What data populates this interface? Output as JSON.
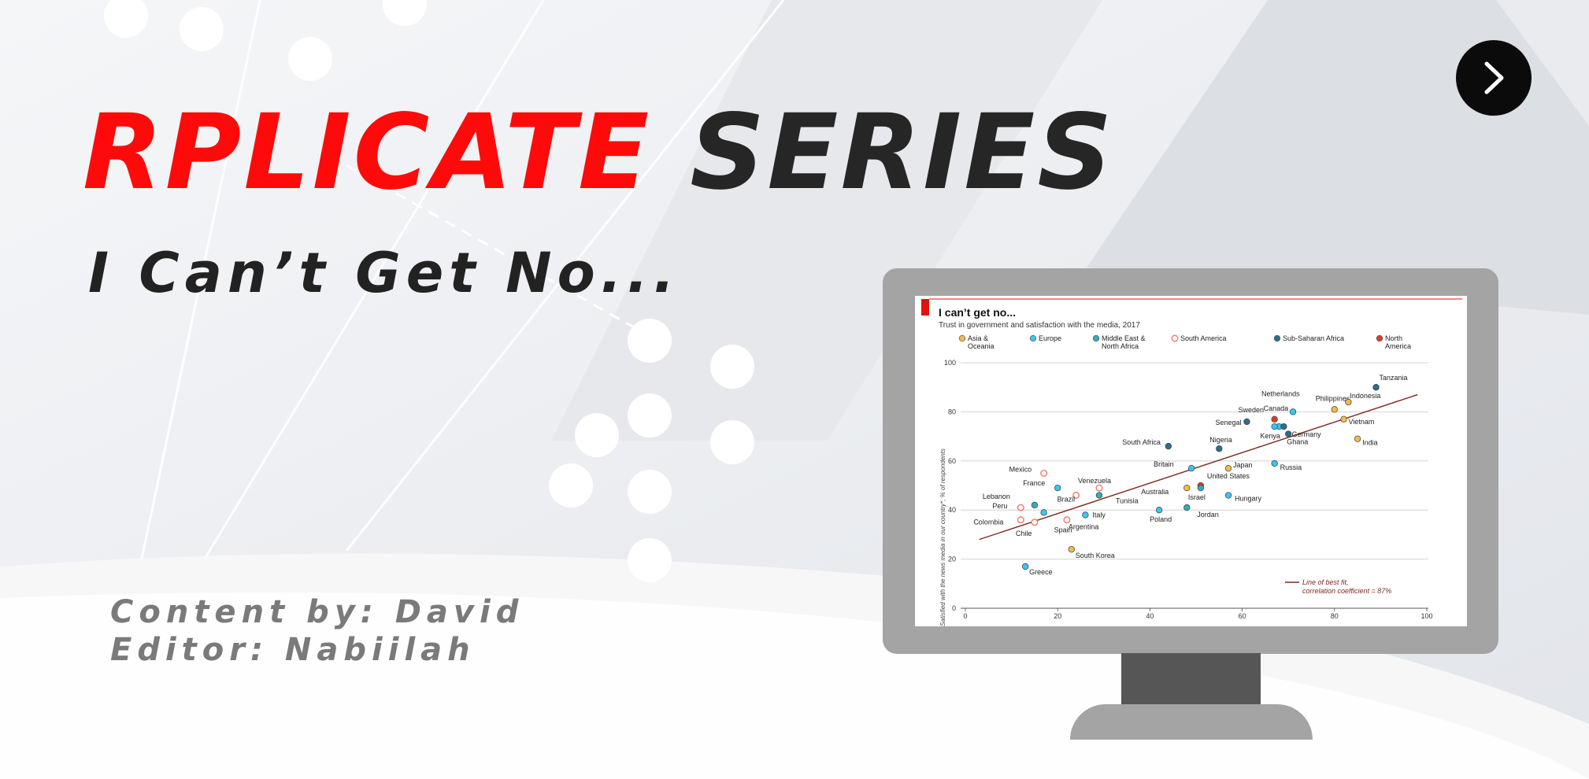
{
  "slide": {
    "title_red": "RPLICATE",
    "title_dark": "SERIES",
    "subtitle": "I Can’t Get No...",
    "content_by": "Content by: David",
    "editor": "Editor: Nabiilah",
    "next_icon": "chevron-right-icon"
  },
  "colors": {
    "title_red": "#ff0a0a",
    "title_dark": "#262626",
    "credit_gray": "#7a7a7a",
    "monitor_frame": "#a4a4a4",
    "monitor_neck": "#565656",
    "chart_accent": "#e3120b",
    "fit_line": "#7b2a1e"
  },
  "chart_data": {
    "type": "scatter",
    "title": "I can’t get no...",
    "subtitle": "Trust in government and satisfaction with the media, 2017",
    "xlabel": "",
    "ylabel": "Satisfied with the news media in our country*, % of respondents",
    "xlim": [
      0,
      100
    ],
    "ylim": [
      0,
      100
    ],
    "xticks": [
      "0",
      "20",
      "40",
      "60",
      "80",
      "100"
    ],
    "yticks": [
      "0",
      "20",
      "40",
      "60",
      "80",
      "100"
    ],
    "grid": "horizontal",
    "legend_position": "top",
    "legend": [
      {
        "name": "Asia & Oceania",
        "lines": [
          "Asia &",
          "Oceania"
        ],
        "color": "#f5b94a",
        "hollow": false
      },
      {
        "name": "Europe",
        "lines": [
          "Europe"
        ],
        "color": "#38c6f4",
        "hollow": false
      },
      {
        "name": "Middle East & North Africa",
        "lines": [
          "Middle East &",
          "North Africa"
        ],
        "color": "#3aa9b8",
        "hollow": false
      },
      {
        "name": "South America",
        "lines": [
          "South America"
        ],
        "color": "#f07b6b",
        "hollow": true
      },
      {
        "name": "Sub-Saharan Africa",
        "lines": [
          "Sub-Saharan Africa"
        ],
        "color": "#2b6f8e",
        "hollow": false
      },
      {
        "name": "North America",
        "lines": [
          "North",
          "America"
        ],
        "color": "#e03b2a",
        "hollow": false
      }
    ],
    "points": [
      {
        "label": "Tanzania",
        "x": 89,
        "y": 90,
        "group": 4
      },
      {
        "label": "Philippines",
        "x": 80,
        "y": 81,
        "group": 0
      },
      {
        "label": "Indonesia",
        "x": 83,
        "y": 84,
        "group": 0
      },
      {
        "label": "Vietnam",
        "x": 82,
        "y": 77,
        "group": 0
      },
      {
        "label": "India",
        "x": 85,
        "y": 69,
        "group": 0
      },
      {
        "label": "Netherlands",
        "x": 71,
        "y": 80,
        "group": 1
      },
      {
        "label": "Canada",
        "x": 67,
        "y": 77,
        "group": 5
      },
      {
        "label": "Sweden",
        "x": 68,
        "y": 74,
        "group": 1
      },
      {
        "label": "Senegal",
        "x": 61,
        "y": 76,
        "group": 4
      },
      {
        "label": "Kenya",
        "x": 69,
        "y": 74,
        "group": 4
      },
      {
        "label": "Ghana",
        "x": 70,
        "y": 71,
        "group": 4
      },
      {
        "label": "Germany",
        "x": 67,
        "y": 74,
        "group": 1
      },
      {
        "label": "Nigeria",
        "x": 55,
        "y": 65,
        "group": 4
      },
      {
        "label": "South Africa",
        "x": 44,
        "y": 66,
        "group": 4
      },
      {
        "label": "Britain",
        "x": 49,
        "y": 57,
        "group": 1
      },
      {
        "label": "Japan",
        "x": 57,
        "y": 57,
        "group": 0
      },
      {
        "label": "Russia",
        "x": 67,
        "y": 59,
        "group": 1
      },
      {
        "label": "United States",
        "x": 51,
        "y": 50,
        "group": 5
      },
      {
        "label": "Australia",
        "x": 48,
        "y": 49,
        "group": 0
      },
      {
        "label": "Israel",
        "x": 51,
        "y": 49,
        "group": 2
      },
      {
        "label": "Hungary",
        "x": 57,
        "y": 46,
        "group": 1
      },
      {
        "label": "Jordan",
        "x": 48,
        "y": 41,
        "group": 2
      },
      {
        "label": "Poland",
        "x": 42,
        "y": 40,
        "group": 1
      },
      {
        "label": "Tunisia",
        "x": 29,
        "y": 46,
        "group": 2
      },
      {
        "label": "Venezuela",
        "x": 29,
        "y": 49,
        "group": 3
      },
      {
        "label": "Mexico",
        "x": 17,
        "y": 55,
        "group": 3
      },
      {
        "label": "France",
        "x": 20,
        "y": 49,
        "group": 1
      },
      {
        "label": "Brazil",
        "x": 24,
        "y": 46,
        "group": 3
      },
      {
        "label": "Lebanon",
        "x": 15,
        "y": 42,
        "group": 2
      },
      {
        "label": "Peru",
        "x": 12,
        "y": 41,
        "group": 3
      },
      {
        "label": "Italy",
        "x": 26,
        "y": 38,
        "group": 1
      },
      {
        "label": "Colombia",
        "x": 12,
        "y": 36,
        "group": 3
      },
      {
        "label": "Chile",
        "x": 15,
        "y": 35,
        "group": 3
      },
      {
        "label": "Spain",
        "x": 17,
        "y": 39,
        "group": 1
      },
      {
        "label": "Argentina",
        "x": 22,
        "y": 36,
        "group": 3
      },
      {
        "label": "South Korea",
        "x": 23,
        "y": 24,
        "group": 0
      },
      {
        "label": "Greece",
        "x": 13,
        "y": 17,
        "group": 1
      }
    ],
    "fit_line": {
      "x": [
        3,
        98
      ],
      "y": [
        28,
        87
      ]
    },
    "fit_label": [
      "Line of best fit,",
      "correlation coefficient = 87%"
    ]
  }
}
